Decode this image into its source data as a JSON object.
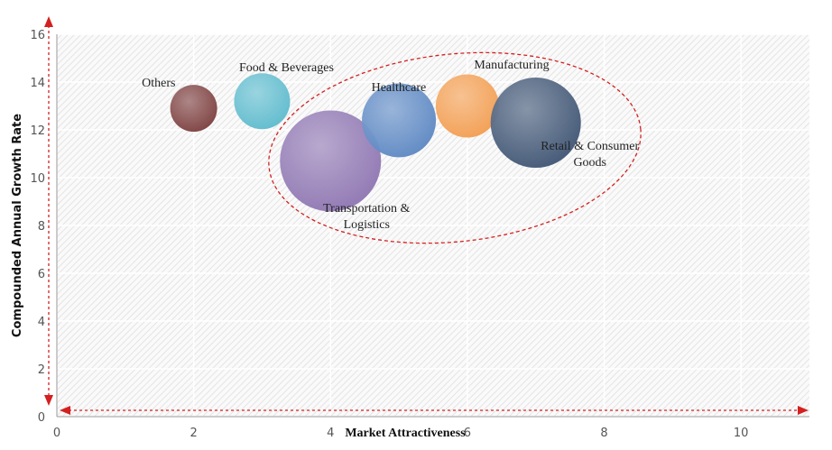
{
  "chart_data": {
    "type": "bubble",
    "x_label": "Market Attractiveness",
    "y_label": "Compounded Annual Growth Rate",
    "labels": [
      "Others",
      "Food & Beverages",
      "Transportation & Logistics",
      "Healthcare",
      "Manufacturing",
      "Retail & Consumer Goods"
    ],
    "x": [
      2,
      3,
      4,
      5,
      6,
      7
    ],
    "y": [
      12.9,
      13.2,
      10.7,
      12.4,
      13.0,
      12.3
    ],
    "sizes": [
      26,
      31,
      56,
      41,
      35,
      50
    ],
    "colors": [
      "#7a3b3b",
      "#5bb9cc",
      "#8c73b0",
      "#5a86c2",
      "#f29c4e",
      "#3c5272"
    ],
    "xlim": [
      0,
      11
    ],
    "xticks": [
      0,
      2,
      4,
      6,
      8,
      10
    ],
    "ylim": [
      0,
      16
    ],
    "yticks": [
      0,
      2,
      4,
      6,
      8,
      10,
      12,
      14,
      16
    ],
    "grid": true
  }
}
